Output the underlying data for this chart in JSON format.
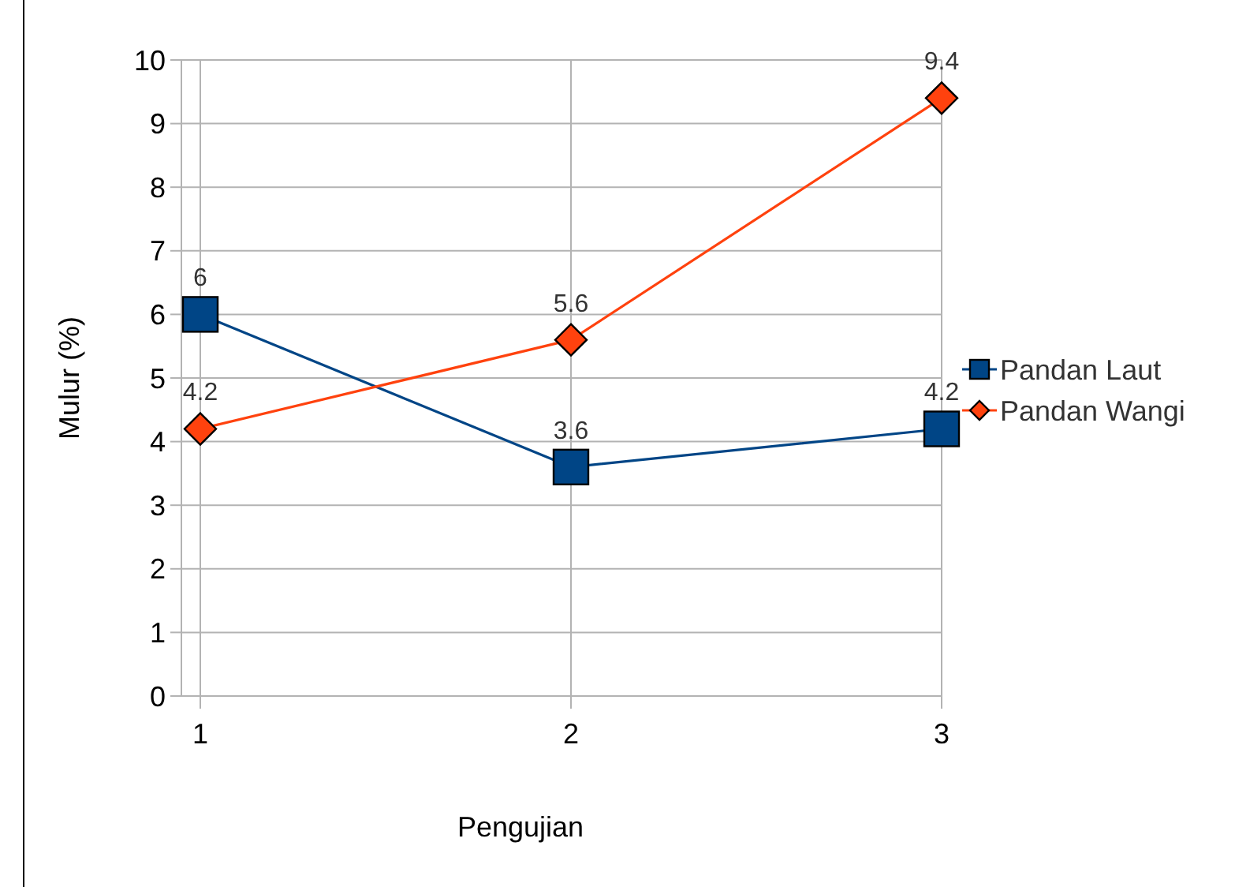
{
  "chart_data": {
    "type": "line",
    "xlabel": "Pengujian",
    "ylabel": "Mulur (%)",
    "categories": [
      "1",
      "2",
      "3"
    ],
    "series": [
      {
        "name": "Pandan Laut",
        "color": "#004586",
        "values": [
          6,
          3.6,
          4.2
        ],
        "marker": "square"
      },
      {
        "name": "Pandan Wangi",
        "color": "#ff420e",
        "values": [
          4.2,
          5.6,
          9.4
        ],
        "marker": "diamond"
      }
    ],
    "ylim": [
      0,
      10
    ],
    "yticks": [
      0,
      1,
      2,
      3,
      4,
      5,
      6,
      7,
      8,
      9,
      10
    ],
    "grid": true,
    "legend": "right",
    "data_labels": true,
    "line_style": "solid"
  }
}
